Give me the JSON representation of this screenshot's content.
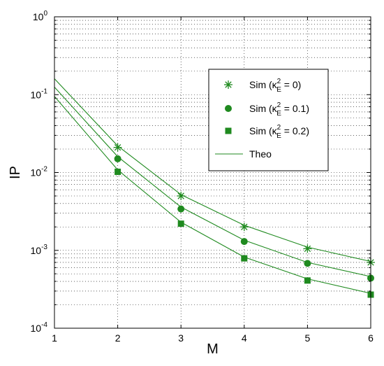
{
  "chart_data": {
    "type": "line",
    "title": "",
    "xlabel": "M",
    "ylabel": "IP",
    "xlim": [
      1,
      6
    ],
    "ylim": [
      0.0001,
      1
    ],
    "yscale": "log",
    "grid": true,
    "legend_position": "top-right",
    "color": "#1f8a1f",
    "x_ticks": [
      "1",
      "2",
      "3",
      "4",
      "5",
      "6"
    ],
    "y_ticks": [
      {
        "base": "10",
        "exp": "-4"
      },
      {
        "base": "10",
        "exp": "-3"
      },
      {
        "base": "10",
        "exp": "-2"
      },
      {
        "base": "10",
        "exp": "-1"
      },
      {
        "base": "10",
        "exp": "0"
      }
    ],
    "series": [
      {
        "name": "Sim (κ²E = 0)",
        "label_main": "Sim (κ",
        "label_sup": "2",
        "label_sub": "E",
        "label_tail": " = 0)",
        "marker": "asterisk",
        "x": [
          2,
          3,
          4,
          5,
          6
        ],
        "values": [
          0.021,
          0.005,
          0.002,
          0.00105,
          0.0007
        ]
      },
      {
        "name": "Sim (κ²E = 0.1)",
        "label_main": "Sim (κ",
        "label_sup": "2",
        "label_sub": "E",
        "label_tail": " = 0.1)",
        "marker": "circle",
        "x": [
          2,
          3,
          4,
          5,
          6
        ],
        "values": [
          0.015,
          0.0034,
          0.0013,
          0.00068,
          0.00044
        ]
      },
      {
        "name": "Sim (κ²E = 0.2)",
        "label_main": "Sim (κ",
        "label_sup": "2",
        "label_sub": "E",
        "label_tail": " = 0.2)",
        "marker": "square",
        "x": [
          2,
          3,
          4,
          5,
          6
        ],
        "values": [
          0.0102,
          0.0022,
          0.00079,
          0.00041,
          0.00027
        ]
      },
      {
        "name": "Theo",
        "marker": "none",
        "x": [
          1,
          2,
          3,
          4,
          5,
          6
        ],
        "curves": [
          [
            0.16,
            0.022,
            0.0052,
            0.0021,
            0.0011,
            0.00072
          ],
          [
            0.125,
            0.016,
            0.0036,
            0.00135,
            0.0007,
            0.00046
          ],
          [
            0.095,
            0.0108,
            0.0023,
            0.00082,
            0.00043,
            0.00028
          ]
        ]
      }
    ]
  }
}
